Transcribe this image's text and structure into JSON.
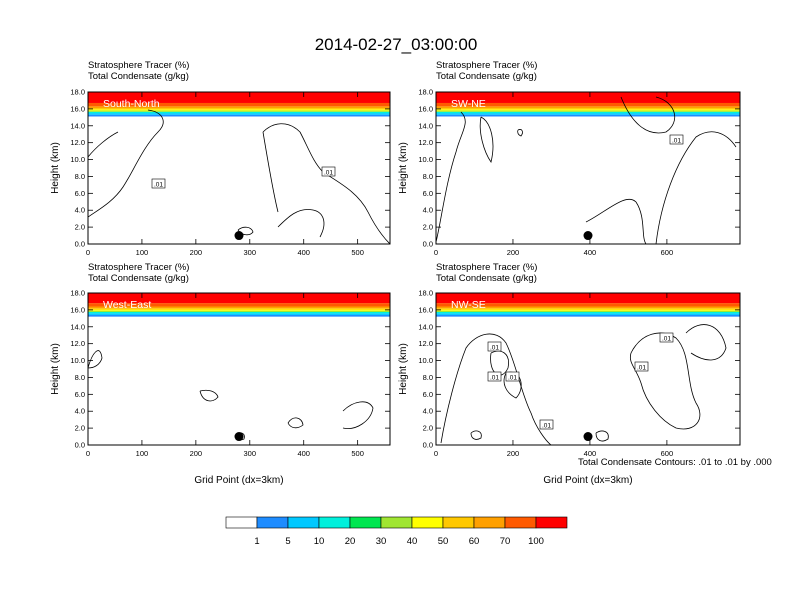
{
  "title": "2014-02-27_03:00:00",
  "field_label_1": "Stratosphere Tracer   (%)",
  "field_label_2": "Total Condensate   (g/kg)",
  "y_axis_label": "Height (km)",
  "x_axis_label": "Grid Point (dx=3km)",
  "contour_note": "Total Condensate Contours: .01 to .01 by .000",
  "contour_label": ".01",
  "colorbar": {
    "levels": [
      "1",
      "5",
      "10",
      "20",
      "30",
      "40",
      "50",
      "60",
      "70",
      "100"
    ],
    "colors": [
      "#ffffff",
      "#1e8cff",
      "#00c8ff",
      "#00f0dc",
      "#00e650",
      "#00dc00",
      "#a0e632",
      "#ffff00",
      "#ffc800",
      "#ffa000",
      "#ff5a00",
      "#ff0000"
    ]
  },
  "chart_data": [
    {
      "type": "heatmap",
      "panel": "South-North",
      "ylim": [
        0,
        18
      ],
      "y_ticks": [
        "0.0",
        "2.0",
        "4.0",
        "6.0",
        "8.0",
        "10.0",
        "12.0",
        "14.0",
        "16.0",
        "18.0"
      ],
      "xlim": [
        0,
        560
      ],
      "x_ticks": [
        "0",
        "100",
        "200",
        "300",
        "400",
        "500"
      ],
      "tropopause_km": 15.5,
      "marker_x": 280,
      "marker_y_km": 1.0
    },
    {
      "type": "heatmap",
      "panel": "SW-NE",
      "ylim": [
        0,
        18
      ],
      "y_ticks": [
        "0.0",
        "2.0",
        "4.0",
        "6.0",
        "8.0",
        "10.0",
        "12.0",
        "14.0",
        "16.0",
        "18.0"
      ],
      "xlim": [
        0,
        790
      ],
      "x_ticks": [
        "0",
        "200",
        "400",
        "600"
      ],
      "tropopause_km": 15.5,
      "marker_x": 395,
      "marker_y_km": 1.0
    },
    {
      "type": "heatmap",
      "panel": "West-East",
      "ylim": [
        0,
        18
      ],
      "y_ticks": [
        "0.0",
        "2.0",
        "4.0",
        "6.0",
        "8.0",
        "10.0",
        "12.0",
        "14.0",
        "16.0",
        "18.0"
      ],
      "xlim": [
        0,
        560
      ],
      "x_ticks": [
        "0",
        "100",
        "200",
        "300",
        "400",
        "500"
      ],
      "tropopause_km": 15.6,
      "marker_x": 280,
      "marker_y_km": 1.0
    },
    {
      "type": "heatmap",
      "panel": "NW-SE",
      "ylim": [
        0,
        18
      ],
      "y_ticks": [
        "0.0",
        "2.0",
        "4.0",
        "6.0",
        "8.0",
        "10.0",
        "12.0",
        "14.0",
        "16.0",
        "18.0"
      ],
      "xlim": [
        0,
        790
      ],
      "x_ticks": [
        "0",
        "200",
        "400",
        "600"
      ],
      "tropopause_km": 15.6,
      "marker_x": 395,
      "marker_y_km": 1.0
    }
  ]
}
